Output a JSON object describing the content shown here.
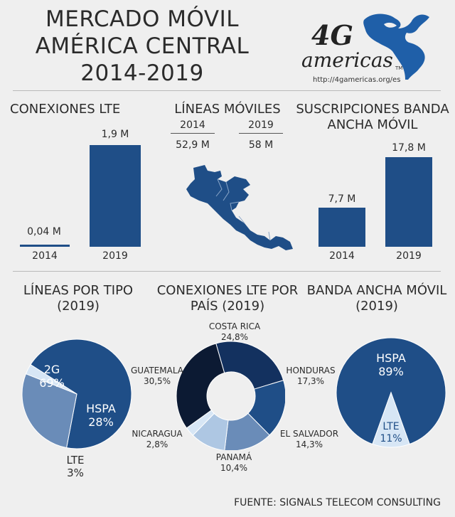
{
  "title": {
    "line1": "MERCADO MÓVIL",
    "line2": "AMÉRICA CENTRAL",
    "line3": "2014-2019"
  },
  "logo": {
    "brand_top": "4G",
    "brand_bottom": "americas",
    "tm": "TM",
    "url": "http://4gamericas.org/es"
  },
  "lte_connections": {
    "heading": "CONEXIONES LTE",
    "bars": [
      {
        "year": "2014",
        "label": "0,04 M"
      },
      {
        "year": "2019",
        "label": "1,9 M"
      }
    ]
  },
  "mobile_lines": {
    "heading": "LÍNEAS MÓVILES",
    "cols": [
      {
        "year": "2014",
        "value": "52,9 M"
      },
      {
        "year": "2019",
        "value": "58 M"
      }
    ]
  },
  "broadband": {
    "heading_line1": "SUSCRIPCIONES BANDA",
    "heading_line2": "ANCHA MÓVIL",
    "bars": [
      {
        "year": "2014",
        "label": "7,7 M"
      },
      {
        "year": "2019",
        "label": "17,8 M"
      }
    ]
  },
  "pie_types": {
    "heading_line1": "LÍNEAS POR TIPO",
    "heading_line2": "(2019)",
    "labels": {
      "g2_name": "2G",
      "g2_pct": "69%",
      "hspa_name": "HSPA",
      "hspa_pct": "28%",
      "lte_name": "LTE",
      "lte_pct": "3%"
    }
  },
  "donut_countries": {
    "heading_line1": "CONEXIONES LTE POR",
    "heading_line2": "PAÍS (2019)",
    "labels": {
      "costa_rica_name": "COSTA RICA",
      "costa_rica_pct": "24,8%",
      "honduras_name": "HONDURAS",
      "honduras_pct": "17,3%",
      "el_salvador_name": "EL SALVADOR",
      "el_salvador_pct": "14,3%",
      "panama_name": "PANAMÁ",
      "panama_pct": "10,4%",
      "nicaragua_name": "NICARAGUA",
      "nicaragua_pct": "2,8%",
      "guatemala_name": "GUATEMALA",
      "guatemala_pct": "30,5%"
    }
  },
  "pie_broadband": {
    "heading_line1": "BANDA ANCHA MÓVIL",
    "heading_line2": "(2019)",
    "labels": {
      "hspa_name": "HSPA",
      "hspa_pct": "89%",
      "lte_name": "LTE",
      "lte_pct": "11%"
    }
  },
  "source": "FUENTE: SIGNALS TELECOM CONSULTING",
  "colors": {
    "dark_blue": "#1f4e87",
    "mid_blue": "#6a8cb8",
    "light_blue": "#aec7e3",
    "pale_blue": "#d7e6f5",
    "navy": "#0c1a33",
    "background": "#efefef"
  },
  "chart_data": [
    {
      "type": "bar",
      "title": "CONEXIONES LTE",
      "categories": [
        "2014",
        "2019"
      ],
      "values": [
        0.04,
        1.9
      ],
      "unit": "M"
    },
    {
      "type": "bar",
      "title": "SUSCRIPCIONES BANDA ANCHA MÓVIL",
      "categories": [
        "2014",
        "2019"
      ],
      "values": [
        7.7,
        17.8
      ],
      "unit": "M"
    },
    {
      "type": "table",
      "title": "LÍNEAS MÓVILES",
      "categories": [
        "2014",
        "2019"
      ],
      "values": [
        52.9,
        58
      ],
      "unit": "M"
    },
    {
      "type": "pie",
      "title": "LÍNEAS POR TIPO (2019)",
      "categories": [
        "2G",
        "HSPA",
        "LTE"
      ],
      "values": [
        69,
        28,
        3
      ]
    },
    {
      "type": "pie",
      "title": "CONEXIONES LTE POR PAÍS (2019)",
      "categories": [
        "COSTA RICA",
        "HONDURAS",
        "EL SALVADOR",
        "PANAMÁ",
        "NICARAGUA",
        "GUATEMALA"
      ],
      "values": [
        24.8,
        17.3,
        14.3,
        10.4,
        2.8,
        30.5
      ]
    },
    {
      "type": "pie",
      "title": "BANDA ANCHA MÓVIL (2019)",
      "categories": [
        "HSPA",
        "LTE"
      ],
      "values": [
        89,
        11
      ]
    }
  ]
}
